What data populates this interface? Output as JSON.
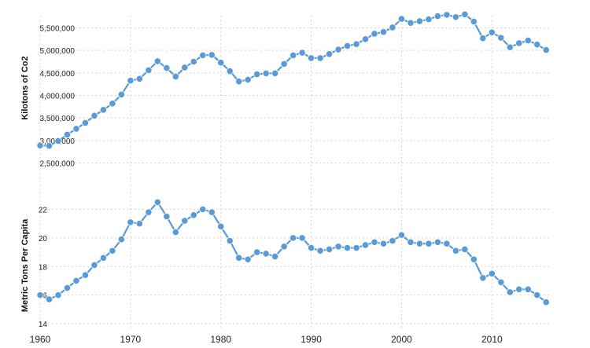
{
  "colors": {
    "series": "#5b9bd5",
    "grid": "#d5d5d5",
    "text": "#222222"
  },
  "chart_data": [
    {
      "type": "line",
      "title": "",
      "xlabel": "",
      "ylabel": "Kilotons of Co2",
      "ylim": [
        2500000,
        5700000
      ],
      "yticks": [
        2500000,
        3000000,
        3500000,
        4000000,
        4500000,
        5000000,
        5500000
      ],
      "ytick_labels": [
        "2,500,000",
        "3,000,000",
        "3,500,000",
        "4,000,000",
        "4,500,000",
        "5,000,000",
        "5,500,000"
      ],
      "grid": true,
      "x": [
        1960,
        1961,
        1962,
        1963,
        1964,
        1965,
        1966,
        1967,
        1968,
        1969,
        1970,
        1971,
        1972,
        1973,
        1974,
        1975,
        1976,
        1977,
        1978,
        1979,
        1980,
        1981,
        1982,
        1983,
        1984,
        1985,
        1986,
        1987,
        1988,
        1989,
        1990,
        1991,
        1992,
        1993,
        1994,
        1995,
        1996,
        1997,
        1998,
        1999,
        2000,
        2001,
        2002,
        2003,
        2004,
        2005,
        2006,
        2007,
        2008,
        2009,
        2010,
        2011,
        2012,
        2013,
        2014,
        2015,
        2016
      ],
      "series": [
        {
          "values": [
            2890000,
            2880000,
            2990000,
            3130000,
            3260000,
            3390000,
            3550000,
            3680000,
            3820000,
            4020000,
            4330000,
            4370000,
            4560000,
            4760000,
            4610000,
            4420000,
            4620000,
            4750000,
            4890000,
            4900000,
            4730000,
            4540000,
            4310000,
            4350000,
            4470000,
            4490000,
            4490000,
            4700000,
            4890000,
            4950000,
            4830000,
            4830000,
            4920000,
            5020000,
            5100000,
            5140000,
            5250000,
            5370000,
            5410000,
            5510000,
            5700000,
            5610000,
            5650000,
            5690000,
            5760000,
            5790000,
            5740000,
            5800000,
            5640000,
            5270000,
            5400000,
            5280000,
            5070000,
            5160000,
            5220000,
            5130000,
            5010000
          ]
        }
      ]
    },
    {
      "type": "line",
      "title": "",
      "xlabel": "",
      "ylabel": "Metric Tons Per Capita",
      "ylim": [
        14,
        23
      ],
      "yticks": [
        14,
        16,
        18,
        20,
        22
      ],
      "ytick_labels": [
        "14",
        "16",
        "18",
        "20",
        "22"
      ],
      "grid": true,
      "xticks": [
        1960,
        1970,
        1980,
        1990,
        2000,
        2010
      ],
      "xtick_labels": [
        "1960",
        "1970",
        "1980",
        "1990",
        "2000",
        "2010"
      ],
      "x": [
        1960,
        1961,
        1962,
        1963,
        1964,
        1965,
        1966,
        1967,
        1968,
        1969,
        1970,
        1971,
        1972,
        1973,
        1974,
        1975,
        1976,
        1977,
        1978,
        1979,
        1980,
        1981,
        1982,
        1983,
        1984,
        1985,
        1986,
        1987,
        1988,
        1989,
        1990,
        1991,
        1992,
        1993,
        1994,
        1995,
        1996,
        1997,
        1998,
        1999,
        2000,
        2001,
        2002,
        2003,
        2004,
        2005,
        2006,
        2007,
        2008,
        2009,
        2010,
        2011,
        2012,
        2013,
        2014,
        2015,
        2016
      ],
      "series": [
        {
          "values": [
            16.0,
            15.7,
            16.0,
            16.5,
            17.0,
            17.4,
            18.1,
            18.6,
            19.1,
            19.9,
            21.1,
            21.0,
            21.8,
            22.5,
            21.5,
            20.4,
            21.2,
            21.6,
            22.0,
            21.8,
            20.8,
            19.8,
            18.6,
            18.5,
            19.0,
            18.9,
            18.7,
            19.4,
            20.0,
            20.0,
            19.3,
            19.1,
            19.2,
            19.4,
            19.3,
            19.3,
            19.5,
            19.7,
            19.6,
            19.8,
            20.2,
            19.7,
            19.6,
            19.6,
            19.7,
            19.6,
            19.1,
            19.2,
            18.5,
            17.2,
            17.5,
            16.9,
            16.2,
            16.4,
            16.4,
            16.0,
            15.5
          ]
        }
      ]
    }
  ]
}
